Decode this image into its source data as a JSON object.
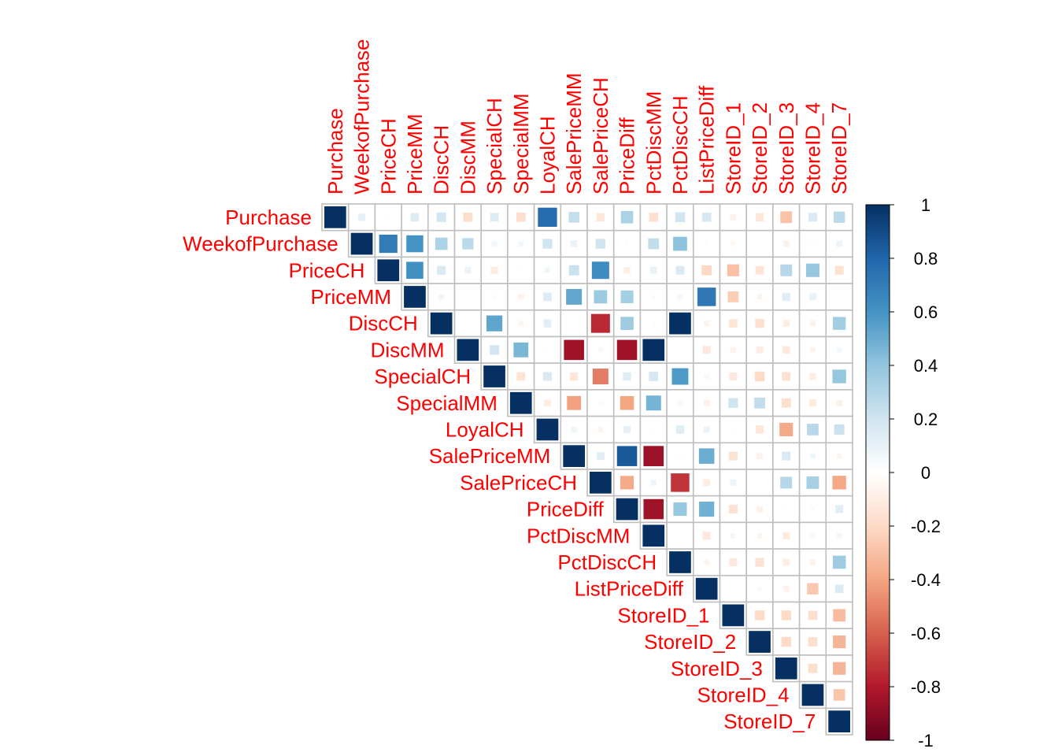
{
  "chart_data": {
    "type": "heatmap",
    "variables": [
      "Purchase",
      "WeekofPurchase",
      "PriceCH",
      "PriceMM",
      "DiscCH",
      "DiscMM",
      "SpecialCH",
      "SpecialMM",
      "LoyalCH",
      "SalePriceMM",
      "SalePriceCH",
      "PriceDiff",
      "PctDiscMM",
      "PctDiscCH",
      "ListPriceDiff",
      "StoreID_1",
      "StoreID_2",
      "StoreID_3",
      "StoreID_4",
      "StoreID_7"
    ],
    "matrix": [
      [
        1,
        0.11,
        0.02,
        0.15,
        0.19,
        -0.18,
        0.15,
        -0.18,
        0.77,
        0.24,
        -0.14,
        0.32,
        -0.17,
        0.2,
        0.18,
        -0.08,
        -0.14,
        -0.29,
        0.16,
        0.27
      ],
      [
        0.11,
        1,
        0.7,
        0.6,
        0.32,
        0.27,
        0.06,
        0.06,
        0.2,
        0.1,
        0.2,
        0.02,
        0.25,
        0.41,
        0.02,
        -0.05,
        0.01,
        -0.08,
        0.02,
        0.08
      ],
      [
        0.02,
        0.7,
        1,
        0.61,
        0.16,
        0.09,
        -0.11,
        0.02,
        0.07,
        0.22,
        0.63,
        -0.09,
        0.1,
        0.16,
        -0.21,
        -0.3,
        -0.15,
        0.29,
        0.38,
        -0.16
      ],
      [
        0.15,
        0.6,
        0.61,
        1,
        0.07,
        0.01,
        -0.03,
        -0.07,
        0.15,
        0.52,
        0.37,
        0.34,
        -0.03,
        0.06,
        0.72,
        -0.25,
        -0.06,
        0.14,
        0.1,
        -0.01
      ],
      [
        0.19,
        0.32,
        0.16,
        0.07,
        1,
        0.01,
        0.53,
        -0.06,
        0.13,
        0.01,
        -0.75,
        0.36,
        -0.02,
        1.0,
        -0.07,
        -0.15,
        -0.17,
        -0.1,
        -0.07,
        0.35
      ],
      [
        -0.18,
        0.27,
        0.09,
        0.01,
        0.01,
        1,
        0.19,
        0.46,
        0.02,
        -0.85,
        0.05,
        -0.85,
        1.0,
        0.01,
        -0.13,
        -0.07,
        -0.1,
        -0.12,
        -0.06,
        0.06
      ],
      [
        0.15,
        0.06,
        -0.11,
        -0.03,
        0.53,
        0.19,
        1,
        -0.15,
        0.16,
        -0.14,
        -0.52,
        0.14,
        0.18,
        0.57,
        0.05,
        -0.13,
        -0.2,
        -0.16,
        -0.1,
        0.39
      ],
      [
        -0.18,
        0.06,
        0.02,
        -0.07,
        -0.06,
        0.46,
        -0.15,
        1,
        -0.1,
        -0.41,
        -0.03,
        -0.4,
        0.47,
        -0.06,
        -0.08,
        0.2,
        0.25,
        -0.18,
        -0.11,
        -0.08
      ],
      [
        0.77,
        0.2,
        0.07,
        0.15,
        0.13,
        0.02,
        0.16,
        -0.1,
        1,
        0.07,
        -0.06,
        0.11,
        -0.02,
        0.14,
        0.09,
        0.02,
        -0.14,
        -0.38,
        0.28,
        0.22
      ],
      [
        0.24,
        0.1,
        0.22,
        0.52,
        0.01,
        -0.85,
        -0.14,
        -0.41,
        0.07,
        1,
        0.13,
        0.85,
        -0.86,
        -0.02,
        0.5,
        -0.16,
        -0.08,
        0.16,
        0.07,
        -0.06
      ],
      [
        -0.14,
        0.2,
        0.63,
        0.37,
        -0.75,
        0.05,
        -0.52,
        -0.03,
        -0.06,
        0.13,
        1,
        -0.38,
        0.07,
        -0.72,
        -0.1,
        0.08,
        0.01,
        0.29,
        0.33,
        -0.39
      ],
      [
        0.32,
        0.02,
        -0.09,
        0.34,
        0.36,
        -0.85,
        0.14,
        -0.4,
        0.11,
        0.85,
        -0.38,
        1,
        -0.85,
        0.38,
        0.48,
        -0.16,
        -0.08,
        0.02,
        -0.03,
        0.13
      ],
      [
        -0.17,
        0.25,
        0.1,
        -0.03,
        -0.02,
        1.0,
        0.18,
        0.47,
        -0.02,
        -0.86,
        0.07,
        -0.85,
        1,
        0.01,
        -0.13,
        0.06,
        -0.06,
        -0.11,
        -0.05,
        0.06
      ],
      [
        0.2,
        0.41,
        0.16,
        0.06,
        1.0,
        0.01,
        0.57,
        -0.06,
        0.14,
        -0.02,
        -0.72,
        0.38,
        0.01,
        1,
        -0.06,
        -0.13,
        -0.16,
        -0.1,
        -0.07,
        0.36
      ],
      [
        0.18,
        0.02,
        -0.21,
        0.72,
        -0.07,
        -0.13,
        0.05,
        -0.08,
        0.09,
        0.5,
        -0.1,
        0.48,
        -0.13,
        -0.06,
        1,
        0.0,
        0.04,
        -0.07,
        -0.27,
        0.15
      ],
      [
        -0.08,
        -0.05,
        -0.3,
        -0.25,
        -0.15,
        -0.07,
        -0.13,
        0.2,
        0.02,
        -0.16,
        0.08,
        -0.16,
        0.06,
        -0.13,
        0.0,
        1,
        -0.2,
        -0.2,
        -0.18,
        -0.32
      ],
      [
        -0.14,
        0.01,
        -0.15,
        -0.06,
        -0.17,
        -0.1,
        -0.2,
        0.25,
        -0.14,
        -0.08,
        0.01,
        -0.08,
        -0.06,
        -0.16,
        0.04,
        -0.2,
        1,
        -0.2,
        -0.18,
        -0.34
      ],
      [
        -0.29,
        -0.08,
        0.29,
        0.14,
        -0.1,
        -0.12,
        -0.16,
        -0.18,
        -0.38,
        0.16,
        0.29,
        0.02,
        -0.11,
        -0.1,
        -0.07,
        -0.2,
        -0.2,
        1,
        -0.18,
        -0.34
      ],
      [
        0.16,
        0.02,
        0.38,
        0.1,
        -0.07,
        -0.06,
        -0.1,
        -0.11,
        0.28,
        0.07,
        0.33,
        -0.03,
        -0.05,
        -0.07,
        -0.27,
        -0.18,
        -0.18,
        -0.18,
        1,
        -0.28
      ],
      [
        0.27,
        0.08,
        -0.16,
        -0.01,
        0.35,
        0.06,
        0.39,
        -0.08,
        0.22,
        -0.06,
        -0.39,
        0.13,
        0.06,
        0.36,
        0.15,
        -0.32,
        -0.34,
        -0.34,
        -0.28,
        1
      ]
    ],
    "display": "upper-triangle",
    "colorbar": {
      "range": [
        -1,
        1
      ],
      "ticks": [
        "1",
        "0.8",
        "0.6",
        "0.4",
        "0.2",
        "0",
        "-0.2",
        "-0.4",
        "-0.6",
        "-0.8",
        "-1"
      ],
      "colors": [
        "#67001F",
        "#B2182B",
        "#D6604D",
        "#F4A582",
        "#FDDBC7",
        "#FFFFFF",
        "#D1E5F0",
        "#92C5DE",
        "#4393C3",
        "#2166AC",
        "#053061"
      ]
    },
    "label_color": "#FF0000",
    "grid_color": "#BEBEBE"
  }
}
